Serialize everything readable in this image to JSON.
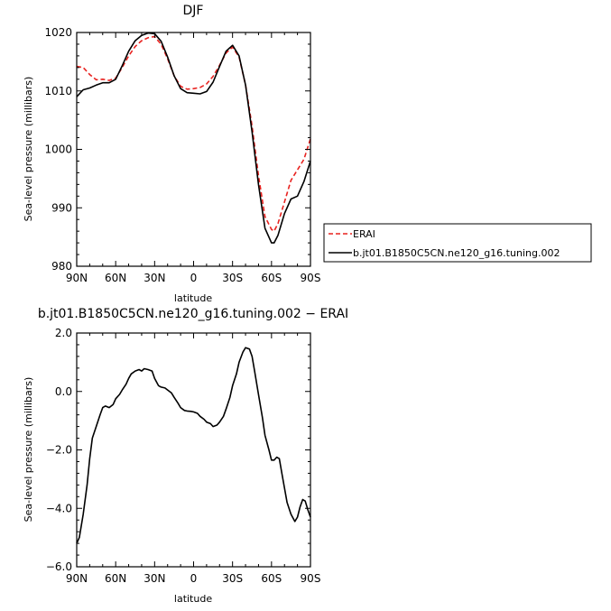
{
  "chart_data": [
    {
      "type": "line",
      "title": "DJF",
      "xlabel": "latitude",
      "ylabel": "Sea-level pressure (millibars)",
      "xlim": [
        90,
        -90
      ],
      "ylim": [
        980,
        1020
      ],
      "xticks": [
        90,
        60,
        30,
        0,
        -30,
        -60,
        -90
      ],
      "xtick_labels": [
        "90N",
        "60N",
        "30N",
        "0",
        "30S",
        "60S",
        "90S"
      ],
      "yticks": [
        980,
        990,
        1000,
        1010,
        1020
      ],
      "ytick_labels": [
        "980",
        "990",
        "1000",
        "1010",
        "1020"
      ],
      "legend_position": "right",
      "series": [
        {
          "name": "ERAI",
          "color": "#e8221f",
          "dash": "dashed",
          "x": [
            90,
            85,
            80,
            75,
            70,
            65,
            60,
            55,
            50,
            45,
            40,
            35,
            30,
            25,
            20,
            15,
            10,
            5,
            0,
            -5,
            -10,
            -15,
            -20,
            -25,
            -30,
            -35,
            -40,
            -45,
            -50,
            -55,
            -60,
            -62,
            -65,
            -70,
            -75,
            -80,
            -85,
            -90
          ],
          "y": [
            1014.2,
            1014.0,
            1012.8,
            1011.9,
            1012.0,
            1011.8,
            1012.2,
            1014.0,
            1016.0,
            1017.6,
            1018.6,
            1019.1,
            1019.3,
            1018.0,
            1015.5,
            1012.6,
            1010.8,
            1010.3,
            1010.4,
            1010.6,
            1011.2,
            1012.5,
            1014.4,
            1016.5,
            1017.5,
            1015.8,
            1011.0,
            1004.0,
            995.5,
            988.5,
            986.3,
            986.0,
            987.3,
            991.0,
            994.7,
            996.5,
            998.3,
            1001.8
          ]
        },
        {
          "name": "b.jt01.B1850C5CN.ne120_g16.tuning.002",
          "color": "#000000",
          "dash": "solid",
          "x": [
            90,
            85,
            80,
            75,
            70,
            65,
            60,
            55,
            50,
            45,
            40,
            35,
            30,
            25,
            20,
            15,
            10,
            5,
            0,
            -5,
            -10,
            -15,
            -20,
            -25,
            -30,
            -35,
            -40,
            -45,
            -50,
            -55,
            -60,
            -62,
            -65,
            -70,
            -75,
            -80,
            -85,
            -90
          ],
          "y": [
            1009.0,
            1010.2,
            1010.5,
            1011.0,
            1011.4,
            1011.4,
            1012.0,
            1014.3,
            1016.8,
            1018.6,
            1019.5,
            1019.9,
            1019.8,
            1018.5,
            1015.8,
            1012.6,
            1010.4,
            1009.7,
            1009.6,
            1009.5,
            1009.9,
            1011.5,
            1014.2,
            1016.8,
            1017.8,
            1016.0,
            1011.0,
            1003.0,
            994.0,
            986.5,
            984.0,
            984.0,
            985.3,
            989.0,
            991.5,
            992.0,
            994.5,
            998.0
          ]
        }
      ]
    },
    {
      "type": "line",
      "title": "b.jt01.B1850C5CN.ne120_g16.tuning.002  −  ERAI",
      "xlabel": "latitude",
      "ylabel": "Sea-level pressure (millibars)",
      "xlim": [
        90,
        -90
      ],
      "ylim": [
        -6.0,
        2.0
      ],
      "xticks": [
        90,
        60,
        30,
        0,
        -30,
        -60,
        -90
      ],
      "xtick_labels": [
        "90N",
        "60N",
        "30N",
        "0",
        "30S",
        "60S",
        "90S"
      ],
      "yticks": [
        -6.0,
        -4.0,
        -2.0,
        0.0,
        2.0
      ],
      "ytick_labels": [
        "−6.0",
        "−4.0",
        "−2.0",
        "0.0",
        "2.0"
      ],
      "series": [
        {
          "color": "#000000",
          "dash": "solid",
          "x": [
            90,
            88,
            85,
            82,
            80,
            78,
            75,
            72,
            70,
            68,
            65,
            62,
            60,
            57,
            55,
            52,
            50,
            48,
            45,
            42,
            40,
            38,
            35,
            32,
            30,
            27,
            25,
            22,
            20,
            17,
            15,
            12,
            10,
            7,
            5,
            2,
            0,
            -3,
            -5,
            -8,
            -10,
            -13,
            -15,
            -18,
            -20,
            -23,
            -25,
            -28,
            -30,
            -33,
            -35,
            -38,
            -40,
            -43,
            -45,
            -47,
            -50,
            -53,
            -55,
            -58,
            -60,
            -62,
            -64,
            -66,
            -68,
            -70,
            -72,
            -75,
            -78,
            -80,
            -82,
            -84,
            -86,
            -88,
            -90
          ],
          "y": [
            -5.2,
            -5.0,
            -4.2,
            -3.2,
            -2.3,
            -1.6,
            -1.2,
            -0.8,
            -0.55,
            -0.5,
            -0.55,
            -0.45,
            -0.25,
            -0.1,
            0.05,
            0.25,
            0.45,
            0.6,
            0.7,
            0.75,
            0.7,
            0.78,
            0.75,
            0.7,
            0.45,
            0.2,
            0.15,
            0.12,
            0.05,
            -0.05,
            -0.2,
            -0.4,
            -0.55,
            -0.65,
            -0.67,
            -0.68,
            -0.7,
            -0.75,
            -0.85,
            -0.95,
            -1.05,
            -1.1,
            -1.2,
            -1.15,
            -1.05,
            -0.85,
            -0.6,
            -0.2,
            0.2,
            0.6,
            1.0,
            1.35,
            1.5,
            1.45,
            1.2,
            0.7,
            -0.1,
            -0.9,
            -1.5,
            -2.0,
            -2.35,
            -2.35,
            -2.25,
            -2.3,
            -2.8,
            -3.3,
            -3.8,
            -4.2,
            -4.45,
            -4.3,
            -3.95,
            -3.7,
            -3.75,
            -4.05,
            -4.3
          ]
        }
      ]
    }
  ]
}
